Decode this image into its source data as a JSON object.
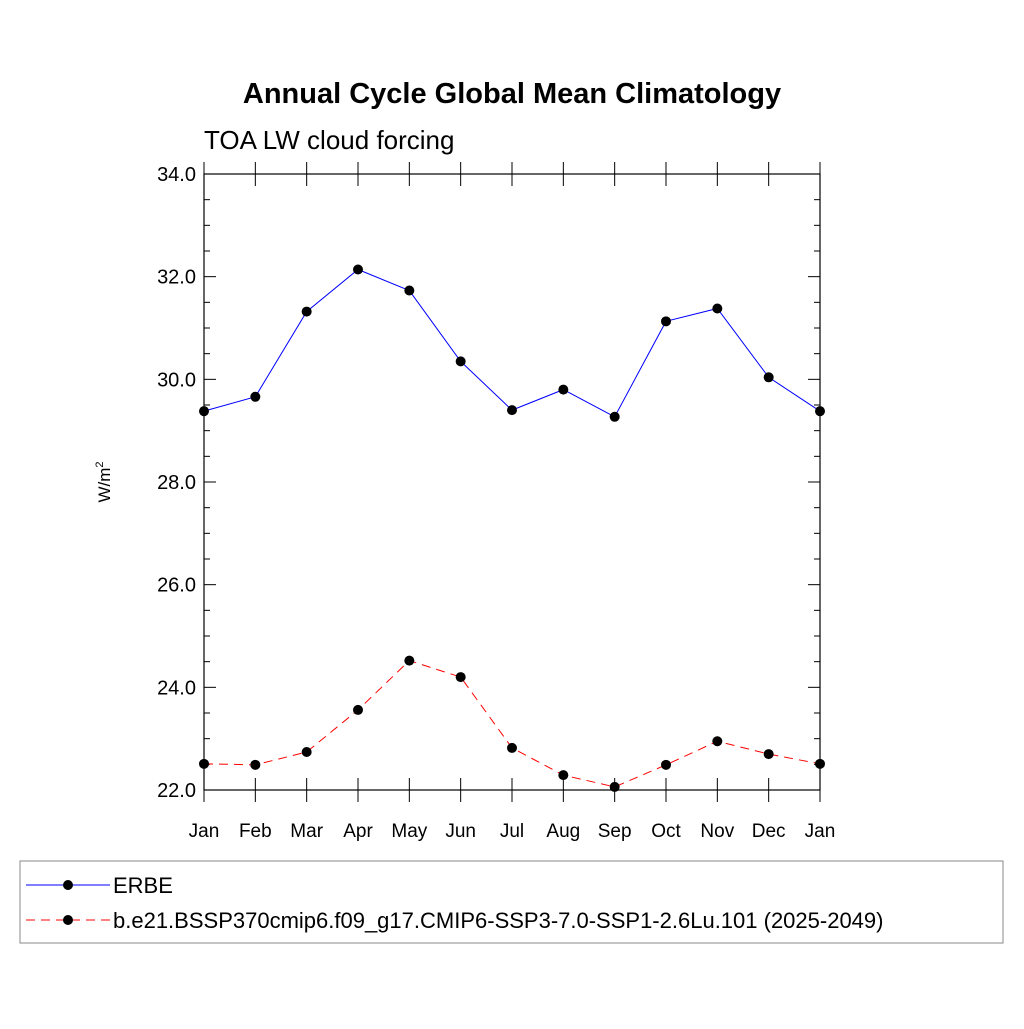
{
  "chart_data": {
    "type": "line",
    "title": "Annual Cycle Global Mean Climatology",
    "subtitle": "TOA LW cloud forcing",
    "ylabel_main": "W/m",
    "ylabel_sup": "2",
    "xlabel": "",
    "ylim": [
      22.0,
      34.0
    ],
    "yticks": [
      22.0,
      24.0,
      26.0,
      28.0,
      30.0,
      32.0,
      34.0
    ],
    "ytick_labels": [
      "22.0",
      "24.0",
      "26.0",
      "28.0",
      "30.0",
      "32.0",
      "34.0"
    ],
    "categories": [
      "Jan",
      "Feb",
      "Mar",
      "Apr",
      "May",
      "Jun",
      "Jul",
      "Aug",
      "Sep",
      "Oct",
      "Nov",
      "Dec",
      "Jan"
    ],
    "grid": false,
    "legend_position": "bottom",
    "series": [
      {
        "name": "ERBE",
        "color": "#0000ff",
        "style": "solid",
        "values": [
          29.38,
          29.66,
          31.32,
          32.14,
          31.73,
          30.35,
          29.4,
          29.8,
          29.27,
          31.13,
          31.38,
          30.04,
          29.38
        ]
      },
      {
        "name": "b.e21.BSSP370cmip6.f09_g17.CMIP6-SSP3-7.0-SSP1-2.6Lu.101 (2025-2049)",
        "color": "#ff0000",
        "style": "dashed",
        "values": [
          22.51,
          22.49,
          22.74,
          23.56,
          24.52,
          24.2,
          22.82,
          22.29,
          22.06,
          22.49,
          22.95,
          22.7,
          22.51
        ]
      }
    ]
  }
}
